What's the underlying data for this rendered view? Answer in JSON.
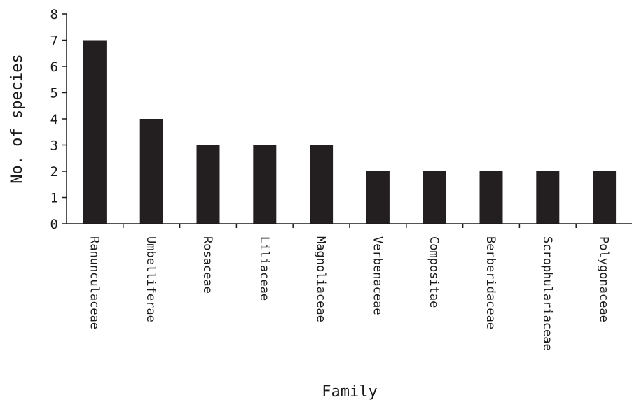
{
  "chart_data": {
    "type": "bar",
    "title": "",
    "xlabel": "Family",
    "ylabel": "No. of species",
    "ylim": [
      0,
      8
    ],
    "yticks": [
      0,
      1,
      2,
      3,
      4,
      5,
      6,
      7,
      8
    ],
    "grid": false,
    "legend": "none",
    "categories": [
      "Ranunculaceae",
      "Umbelliferae",
      "Rosaceae",
      "Liliaceae",
      "Magnoliaceae",
      "Verbenaceae",
      "Compositae",
      "Berberidaceae",
      "Scrophulariaceae",
      "Polygonaceae"
    ],
    "values": [
      7,
      4,
      3,
      3,
      3,
      2,
      2,
      2,
      2,
      2
    ],
    "bar_color": "#231f20",
    "axis_color": "#1a1a1a"
  }
}
